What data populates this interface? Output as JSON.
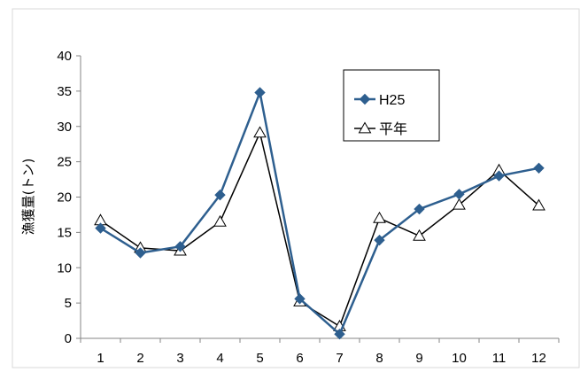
{
  "chart_data": {
    "type": "line",
    "title": "",
    "xlabel": "",
    "ylabel": "漁獲量(トン)",
    "categories": [
      "1",
      "2",
      "3",
      "4",
      "5",
      "6",
      "7",
      "8",
      "9",
      "10",
      "11",
      "12"
    ],
    "ylim": [
      0,
      40
    ],
    "yticks": [
      "0",
      "5",
      "10",
      "15",
      "20",
      "25",
      "30",
      "35",
      "40"
    ],
    "grid": false,
    "legend_position": "top-right",
    "series": [
      {
        "name": "H25",
        "color": "#2e5f8f",
        "marker": "diamond-filled",
        "values": [
          15.6,
          12.1,
          13.0,
          20.3,
          34.8,
          5.6,
          0.6,
          13.9,
          18.3,
          20.4,
          23.0,
          24.1
        ]
      },
      {
        "name": "平年",
        "color": "#000000",
        "marker": "triangle-open",
        "values": [
          16.7,
          12.8,
          12.4,
          16.5,
          29.1,
          5.2,
          1.7,
          17.0,
          14.5,
          18.9,
          23.8,
          18.8
        ]
      }
    ]
  }
}
